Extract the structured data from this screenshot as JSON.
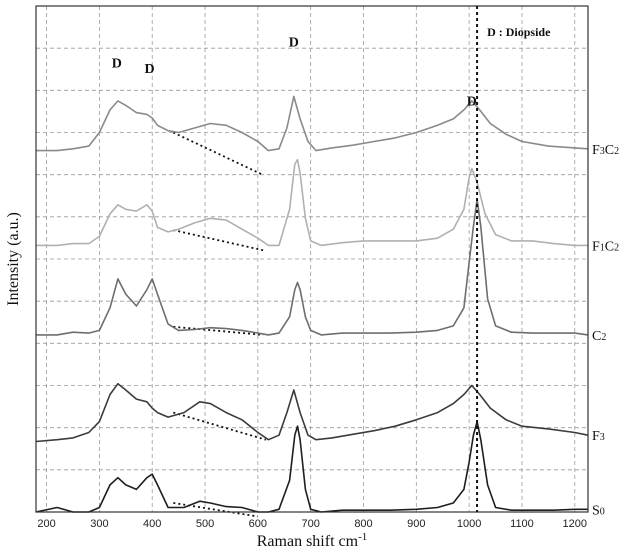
{
  "chart_data": {
    "type": "line",
    "title": "",
    "xlabel": "Raman shift cm",
    "xlabel_superscript": "-1",
    "ylabel": "Intensity (a.u.)",
    "xlim": [
      180,
      1225
    ],
    "ylim": [
      0,
      5.6
    ],
    "grid": true,
    "x_ticks": [
      200,
      300,
      400,
      500,
      600,
      700,
      800,
      900,
      1000,
      1100,
      1200
    ],
    "y_ticks_shown": false,
    "legend_text": "D : Diopside",
    "legend_position": "top-right",
    "reference_line_x": 1015,
    "peak_labels": [
      {
        "text": "D",
        "x": 333,
        "y": 4.92
      },
      {
        "text": "D",
        "x": 395,
        "y": 4.86
      },
      {
        "text": "D",
        "x": 668,
        "y": 5.15
      },
      {
        "text": "D",
        "x": 1005,
        "y": 4.5
      }
    ],
    "baselines": [
      {
        "series": "F3C2",
        "x": [
          440,
          610
        ],
        "y": [
          4.2,
          3.73
        ]
      },
      {
        "series": "F1C2",
        "x": [
          440,
          615
        ],
        "y": [
          3.12,
          2.89
        ]
      },
      {
        "series": "C2",
        "x": [
          440,
          610
        ],
        "y": [
          2.05,
          1.96
        ]
      },
      {
        "series": "F3",
        "x": [
          440,
          615
        ],
        "y": [
          1.1,
          0.8
        ]
      },
      {
        "series": "S0",
        "x": [
          440,
          600
        ],
        "y": [
          0.1,
          -0.05
        ]
      }
    ],
    "series": [
      {
        "name": "F3C2",
        "label_main": "F",
        "label_sub1": "3",
        "label_mid": "C",
        "label_sub2": "2",
        "color": "#8a8a8a",
        "offset": 4.0,
        "x": [
          180,
          220,
          250,
          280,
          300,
          320,
          335,
          350,
          370,
          390,
          400,
          410,
          430,
          450,
          480,
          510,
          540,
          570,
          600,
          620,
          640,
          655,
          668,
          680,
          695,
          710,
          740,
          780,
          820,
          860,
          900,
          940,
          970,
          990,
          1005,
          1020,
          1040,
          1070,
          1100,
          1150,
          1200,
          1225
        ],
        "y": [
          0,
          0,
          0.02,
          0.05,
          0.2,
          0.45,
          0.55,
          0.5,
          0.42,
          0.4,
          0.36,
          0.28,
          0.22,
          0.2,
          0.25,
          0.3,
          0.28,
          0.2,
          0.1,
          0.0,
          0.02,
          0.25,
          0.6,
          0.35,
          0.1,
          0.0,
          0.03,
          0.06,
          0.1,
          0.14,
          0.2,
          0.28,
          0.35,
          0.45,
          0.55,
          0.45,
          0.3,
          0.18,
          0.1,
          0.05,
          0.03,
          0.02
        ]
      },
      {
        "name": "F1C2",
        "label_main": "F",
        "label_sub1": "1",
        "label_mid": "C",
        "label_sub2": "2",
        "color": "#b0b0b0",
        "offset": 2.95,
        "x": [
          180,
          220,
          250,
          280,
          300,
          320,
          335,
          350,
          370,
          390,
          400,
          410,
          430,
          450,
          480,
          510,
          540,
          570,
          600,
          620,
          640,
          660,
          670,
          675,
          680,
          690,
          700,
          720,
          760,
          800,
          850,
          900,
          940,
          970,
          990,
          1000,
          1005,
          1015,
          1030,
          1050,
          1080,
          1120,
          1160,
          1200,
          1225
        ],
        "y": [
          0,
          0,
          0.02,
          0.02,
          0.1,
          0.35,
          0.45,
          0.4,
          0.38,
          0.45,
          0.38,
          0.2,
          0.15,
          0.18,
          0.25,
          0.3,
          0.28,
          0.18,
          0.08,
          0.0,
          0.0,
          0.4,
          0.9,
          0.95,
          0.8,
          0.3,
          0.05,
          0.0,
          0.03,
          0.05,
          0.05,
          0.05,
          0.08,
          0.18,
          0.4,
          0.75,
          0.85,
          0.7,
          0.35,
          0.12,
          0.05,
          0.05,
          0.02,
          0.0,
          0.0
        ]
      },
      {
        "name": "C2",
        "label_main": "C",
        "label_sub1": "2",
        "label_mid": "",
        "label_sub2": "",
        "color": "#6e6e6e",
        "offset": 1.96,
        "x": [
          180,
          220,
          250,
          280,
          300,
          320,
          335,
          350,
          370,
          390,
          400,
          410,
          430,
          450,
          480,
          510,
          540,
          570,
          600,
          620,
          640,
          660,
          670,
          675,
          680,
          690,
          700,
          720,
          760,
          800,
          850,
          900,
          940,
          970,
          990,
          1000,
          1008,
          1015,
          1022,
          1035,
          1050,
          1080,
          1120,
          1160,
          1200,
          1225
        ],
        "y": [
          0,
          0,
          0.03,
          0.02,
          0.05,
          0.3,
          0.62,
          0.45,
          0.32,
          0.5,
          0.62,
          0.45,
          0.12,
          0.05,
          0.06,
          0.08,
          0.07,
          0.05,
          0.02,
          0.0,
          0.02,
          0.2,
          0.5,
          0.58,
          0.5,
          0.2,
          0.05,
          0.0,
          0.02,
          0.02,
          0.02,
          0.03,
          0.05,
          0.1,
          0.3,
          0.8,
          1.2,
          1.5,
          1.2,
          0.4,
          0.1,
          0.03,
          0.02,
          0.02,
          0.02,
          0.0
        ]
      },
      {
        "name": "F3",
        "label_main": "F",
        "label_sub1": "3",
        "label_mid": "",
        "label_sub2": "",
        "color": "#3c3c3c",
        "offset": 0.9,
        "x": [
          180,
          220,
          250,
          280,
          300,
          320,
          335,
          350,
          370,
          390,
          400,
          410,
          430,
          460,
          490,
          510,
          540,
          570,
          600,
          620,
          640,
          655,
          668,
          680,
          695,
          710,
          740,
          780,
          820,
          860,
          900,
          940,
          970,
          990,
          1005,
          1020,
          1040,
          1070,
          1100,
          1150,
          1200,
          1225
        ],
        "y": [
          -0.12,
          -0.1,
          -0.08,
          -0.02,
          0.1,
          0.4,
          0.52,
          0.45,
          0.35,
          0.32,
          0.25,
          0.2,
          0.15,
          0.2,
          0.32,
          0.3,
          0.2,
          0.12,
          -0.02,
          -0.1,
          -0.05,
          0.2,
          0.45,
          0.2,
          -0.05,
          -0.1,
          -0.08,
          -0.04,
          0.0,
          0.05,
          0.12,
          0.2,
          0.3,
          0.4,
          0.5,
          0.4,
          0.25,
          0.12,
          0.05,
          0.02,
          -0.02,
          -0.05
        ]
      },
      {
        "name": "S0",
        "label_main": "S",
        "label_sub1": "0",
        "label_mid": "",
        "label_sub2": "",
        "color": "#1e1e1e",
        "offset": 0.0,
        "x": [
          180,
          220,
          250,
          280,
          300,
          320,
          335,
          350,
          370,
          390,
          400,
          410,
          430,
          460,
          490,
          510,
          540,
          570,
          600,
          620,
          640,
          660,
          670,
          675,
          680,
          690,
          700,
          720,
          760,
          800,
          850,
          900,
          940,
          970,
          990,
          1000,
          1008,
          1015,
          1022,
          1035,
          1050,
          1080,
          1120,
          1160,
          1200,
          1225
        ],
        "y": [
          0,
          0.05,
          0.0,
          0.0,
          0.05,
          0.3,
          0.38,
          0.3,
          0.25,
          0.38,
          0.42,
          0.3,
          0.05,
          0.05,
          0.12,
          0.1,
          0.06,
          0.05,
          0.0,
          0.0,
          0.03,
          0.35,
          0.85,
          0.95,
          0.8,
          0.25,
          0.03,
          0.0,
          0.02,
          0.02,
          0.02,
          0.03,
          0.05,
          0.1,
          0.25,
          0.55,
          0.85,
          1.0,
          0.8,
          0.3,
          0.05,
          0.02,
          0.02,
          0.02,
          0.03,
          0.03
        ]
      }
    ]
  }
}
